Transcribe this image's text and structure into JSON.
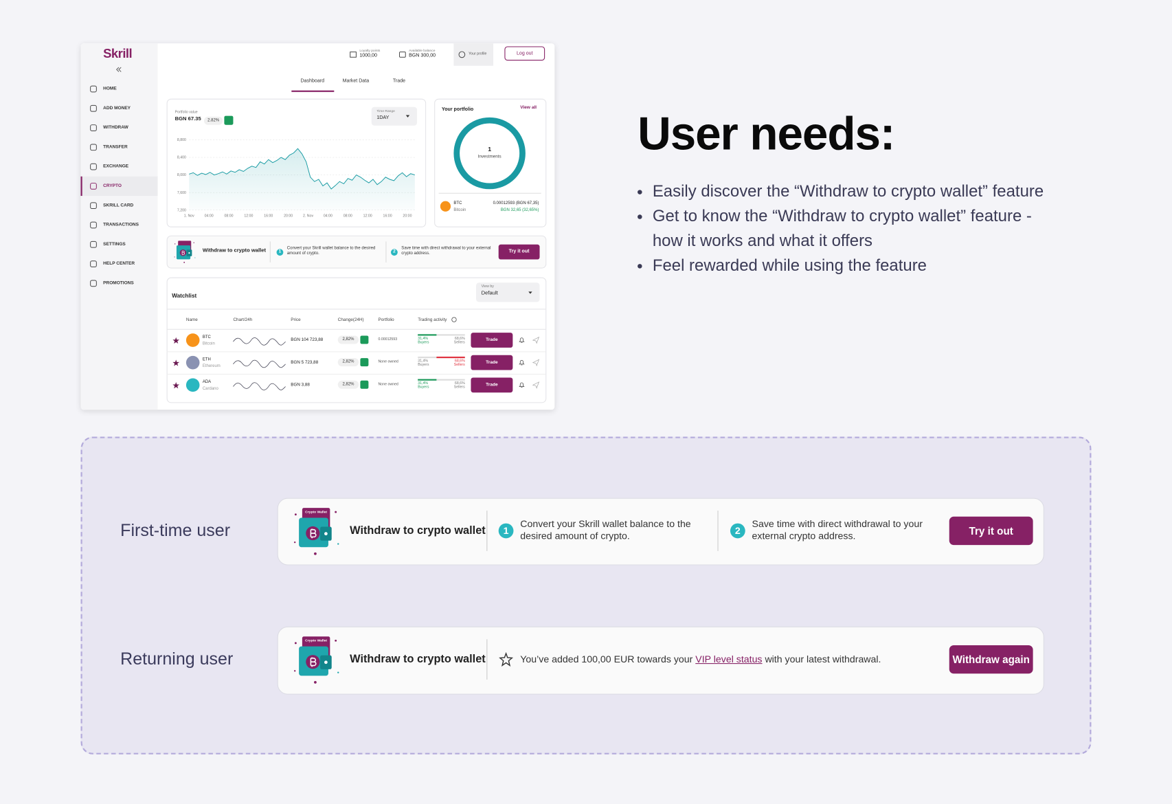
{
  "dashboard": {
    "logo": "Skrill",
    "nav": [
      "HOME",
      "ADD MONEY",
      "WITHDRAW",
      "TRANSFER",
      "EXCHANGE",
      "CRYPTO",
      "SKRILL CARD",
      "TRANSACTIONS",
      "SETTINGS",
      "HELP CENTER",
      "PROMOTIONS"
    ],
    "header": {
      "loyalty_label": "Loyalty points",
      "loyalty_value": "1000,00",
      "balance_label": "Available balance",
      "balance_value": "BGN 300,00",
      "profile": "Your profile",
      "logout": "Log out"
    },
    "tabs": [
      "Dashboard",
      "Market Data",
      "Trade"
    ],
    "portfolio": {
      "label": "Portfolio value",
      "value": "BGN 67.35",
      "change": "2.82%",
      "range_label": "Time Range",
      "range_value": "1DAY"
    },
    "portfolio_chart": {
      "type": "line",
      "color": "#1a9ca4",
      "values": [
        8020,
        8050,
        7990,
        8040,
        8010,
        8060,
        8000,
        8030,
        8070,
        8020,
        8090,
        8060,
        8120,
        8080,
        8150,
        8200,
        8170,
        8300,
        8250,
        8350,
        8280,
        8330,
        8400,
        8350,
        8450,
        8500,
        8600,
        8480,
        8300,
        7950,
        7850,
        7900,
        7750,
        7820,
        7680,
        7760,
        7850,
        7800,
        7920,
        7880,
        8000,
        7950,
        7880,
        7820,
        7900,
        7780,
        7850,
        7950,
        7900,
        7870,
        7980,
        8050,
        7960,
        8030,
        8000
      ],
      "ylim": [
        7200,
        8800
      ],
      "yticks": [
        {
          "value": 7200,
          "label": "7,200"
        },
        {
          "value": 7600,
          "label": "7,600"
        },
        {
          "value": 8000,
          "label": "8,000"
        },
        {
          "value": 8400,
          "label": "8,400"
        },
        {
          "value": 8800,
          "label": "8,800"
        }
      ],
      "x_labels": [
        "1. Nov",
        "04:00",
        "08:00",
        "12:00",
        "16:00",
        "20:00",
        "2. Nov",
        "04:00",
        "08:00",
        "12:00",
        "16:00",
        "20:00"
      ]
    },
    "your_portfolio": {
      "title": "Your portfolio",
      "view_all": "View all",
      "count": "1",
      "count_label": "Investments",
      "symbol": "BTC",
      "name": "Bitcoin",
      "amount": "0.00012593 (BGN 67,35)",
      "gain": "BGN 32,65 (32,65%)"
    },
    "banner": {
      "title": "Withdraw to crypto wallet",
      "step1_num": "1",
      "step1": "Convert your Skrill wallet balance to the desired amount of crypto.",
      "step2_num": "2",
      "step2": "Save time with direct withdrawal to your external crypto address.",
      "button": "Try it out"
    },
    "watchlist": {
      "title": "Watchlist",
      "view_by_label": "View by",
      "view_by_value": "Default",
      "columns": [
        "Name",
        "Chart/24h",
        "Price",
        "Change(24H)",
        "Portfolio",
        "Trading activity"
      ],
      "rows": [
        {
          "symbol": "BTC",
          "name": "Bitcoin",
          "color": "#f7931a",
          "price": "BGN 104 723,88",
          "change": "2,82%",
          "portfolio": "0.00012593",
          "buyers": "31,4%",
          "buyers_label": "Buyers",
          "sellers": "68,6%",
          "sellers_label": "Sellers",
          "bar_color": "#1b9a5a",
          "action": "Trade"
        },
        {
          "symbol": "ETH",
          "name": "Ethereum",
          "color": "#8a92b2",
          "price": "BGN 5 723,88",
          "change": "2,82%",
          "portfolio": "None owned",
          "buyers": "31,4%",
          "buyers_label": "Buyers",
          "sellers": "68,6%",
          "sellers_label": "Sellers",
          "bar_color": "#e0333f",
          "action": "Trade"
        },
        {
          "symbol": "ADA",
          "name": "Cardano",
          "color": "#2ab7c0",
          "price": "BGN 3,88",
          "change": "2,82%",
          "portfolio": "None owned",
          "buyers": "31,4%",
          "buyers_label": "Buyers",
          "sellers": "68,6%",
          "sellers_label": "Sellers",
          "bar_color": "#1b9a5a",
          "action": "Trade"
        }
      ]
    }
  },
  "user_needs": {
    "title": "User needs:",
    "items": [
      {
        "lines": [
          "Easily discover the “Withdraw to crypto wallet” feature"
        ]
      },
      {
        "lines": [
          "Get to know the “Withdraw to crypto wallet” feature -",
          "how it works and what it offers"
        ]
      },
      {
        "lines": [
          "Feel rewarded while using the feature"
        ]
      }
    ]
  },
  "variants": [
    {
      "label": "First-time user",
      "icon_label": "Crypto Wallet",
      "title": "Withdraw to crypto wallet",
      "step1_num": "1",
      "step1": "Convert your Skrill wallet balance to the desired amount of crypto.",
      "step2_num": "2",
      "step2": "Save time with direct withdrawal to your external crypto address.",
      "button": "Try it out"
    },
    {
      "label": "Returning user",
      "icon_label": "Crypto Wallet",
      "title": "Withdraw to crypto wallet",
      "message_start": "You’ve added 100,00 EUR towards your ",
      "message_link": "VIP level status",
      "message_end": " with your latest withdrawal.",
      "button": "Withdraw again"
    }
  ]
}
